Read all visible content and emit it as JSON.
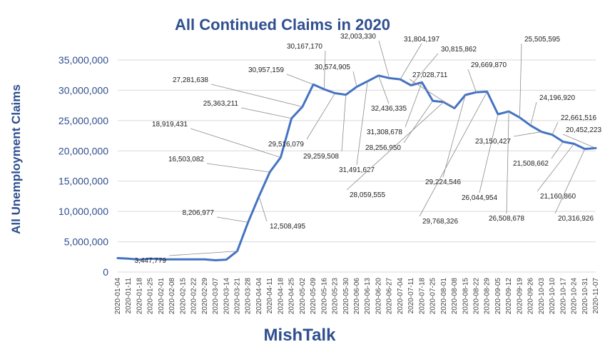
{
  "page": {
    "title": "All Continued Claims in 2020",
    "ylabel": "All Unemployment  Claims",
    "brand": "MishTalk"
  },
  "colors": {
    "title": "#2f4f8f",
    "line": "#4472c4",
    "axis_text": "#2f4f8f",
    "label_text": "#222222",
    "leader": "#8c8c8c",
    "grid": "#d9d9d9"
  },
  "chart_data": {
    "type": "line",
    "title": "All Continued Claims in 2020",
    "xlabel": "",
    "ylabel": "All Unemployment  Claims",
    "ylim": [
      0,
      35000000
    ],
    "yticks": [
      0,
      5000000,
      10000000,
      15000000,
      20000000,
      25000000,
      30000000,
      35000000
    ],
    "ytick_labels": [
      "0",
      "5,000,000",
      "10,000,000",
      "15,000,000",
      "20,000,000",
      "25,000,000",
      "30,000,000",
      "35,000,000"
    ],
    "grid": true,
    "legend": "none",
    "x": [
      "2020-01-04",
      "2020-01-11",
      "2020-01-18",
      "2020-01-25",
      "2020-02-01",
      "2020-02-08",
      "2020-02-15",
      "2020-02-22",
      "2020-02-29",
      "2020-03-07",
      "2020-03-14",
      "2020-03-21",
      "2020-03-28",
      "2020-04-04",
      "2020-04-11",
      "2020-04-18",
      "2020-04-25",
      "2020-05-02",
      "2020-05-09",
      "2020-05-16",
      "2020-05-23",
      "2020-05-30",
      "2020-06-06",
      "2020-06-13",
      "2020-06-20",
      "2020-06-27",
      "2020-07-04",
      "2020-07-11",
      "2020-07-18",
      "2020-07-25",
      "2020-08-01",
      "2020-08-08",
      "2020-08-15",
      "2020-08-22",
      "2020-08-29",
      "2020-09-05",
      "2020-09-12",
      "2020-09-19",
      "2020-09-26",
      "2020-10-03",
      "2020-10-10",
      "2020-10-17",
      "2020-10-24",
      "2020-10-31",
      "2020-11-07"
    ],
    "values": [
      2300000,
      2200000,
      2050000,
      2200000,
      2080000,
      2100000,
      2100000,
      2100000,
      2100000,
      1950000,
      2050000,
      3447779,
      8206977,
      12508495,
      16503082,
      18919431,
      25363211,
      27281638,
      30957159,
      30167170,
      29516079,
      29259508,
      30574905,
      31491627,
      32436335,
      32003330,
      31804197,
      30815862,
      31308678,
      28256950,
      28059555,
      27028711,
      29224546,
      29669870,
      29768326,
      26044954,
      26508678,
      25505595,
      24196920,
      23150427,
      22661516,
      21508662,
      21160860,
      20316926,
      20452223
    ],
    "labels": [
      {
        "i": 11,
        "text": "3,447,779"
      },
      {
        "i": 12,
        "text": "8,206,977"
      },
      {
        "i": 13,
        "text": "12,508,495"
      },
      {
        "i": 14,
        "text": "16,503,082"
      },
      {
        "i": 15,
        "text": "18,919,431"
      },
      {
        "i": 16,
        "text": "25,363,211"
      },
      {
        "i": 17,
        "text": "27,281,638"
      },
      {
        "i": 18,
        "text": "30,957,159"
      },
      {
        "i": 19,
        "text": "30,167,170"
      },
      {
        "i": 20,
        "text": "29,516,079"
      },
      {
        "i": 21,
        "text": "29,259,508"
      },
      {
        "i": 22,
        "text": "30,574,905"
      },
      {
        "i": 23,
        "text": "31,491,627"
      },
      {
        "i": 24,
        "text": "32,436,335"
      },
      {
        "i": 25,
        "text": "32,003,330"
      },
      {
        "i": 26,
        "text": "31,804,197"
      },
      {
        "i": 27,
        "text": "30,815,862"
      },
      {
        "i": 28,
        "text": "31,308,678"
      },
      {
        "i": 29,
        "text": "28,256,950"
      },
      {
        "i": 30,
        "text": "28,059,555"
      },
      {
        "i": 31,
        "text": "27,028,711"
      },
      {
        "i": 32,
        "text": "29,224,546"
      },
      {
        "i": 33,
        "text": "29,669,870"
      },
      {
        "i": 34,
        "text": "29,768,326"
      },
      {
        "i": 35,
        "text": "26,044,954"
      },
      {
        "i": 36,
        "text": "26,508,678"
      },
      {
        "i": 37,
        "text": "25,505,595"
      },
      {
        "i": 38,
        "text": "24,196,920"
      },
      {
        "i": 39,
        "text": "23,150,427"
      },
      {
        "i": 40,
        "text": "22,661,516"
      },
      {
        "i": 41,
        "text": "21,508,662"
      },
      {
        "i": 42,
        "text": "21,160,860"
      },
      {
        "i": 43,
        "text": "20,316,926"
      },
      {
        "i": 44,
        "text": "20,452,223"
      }
    ]
  }
}
